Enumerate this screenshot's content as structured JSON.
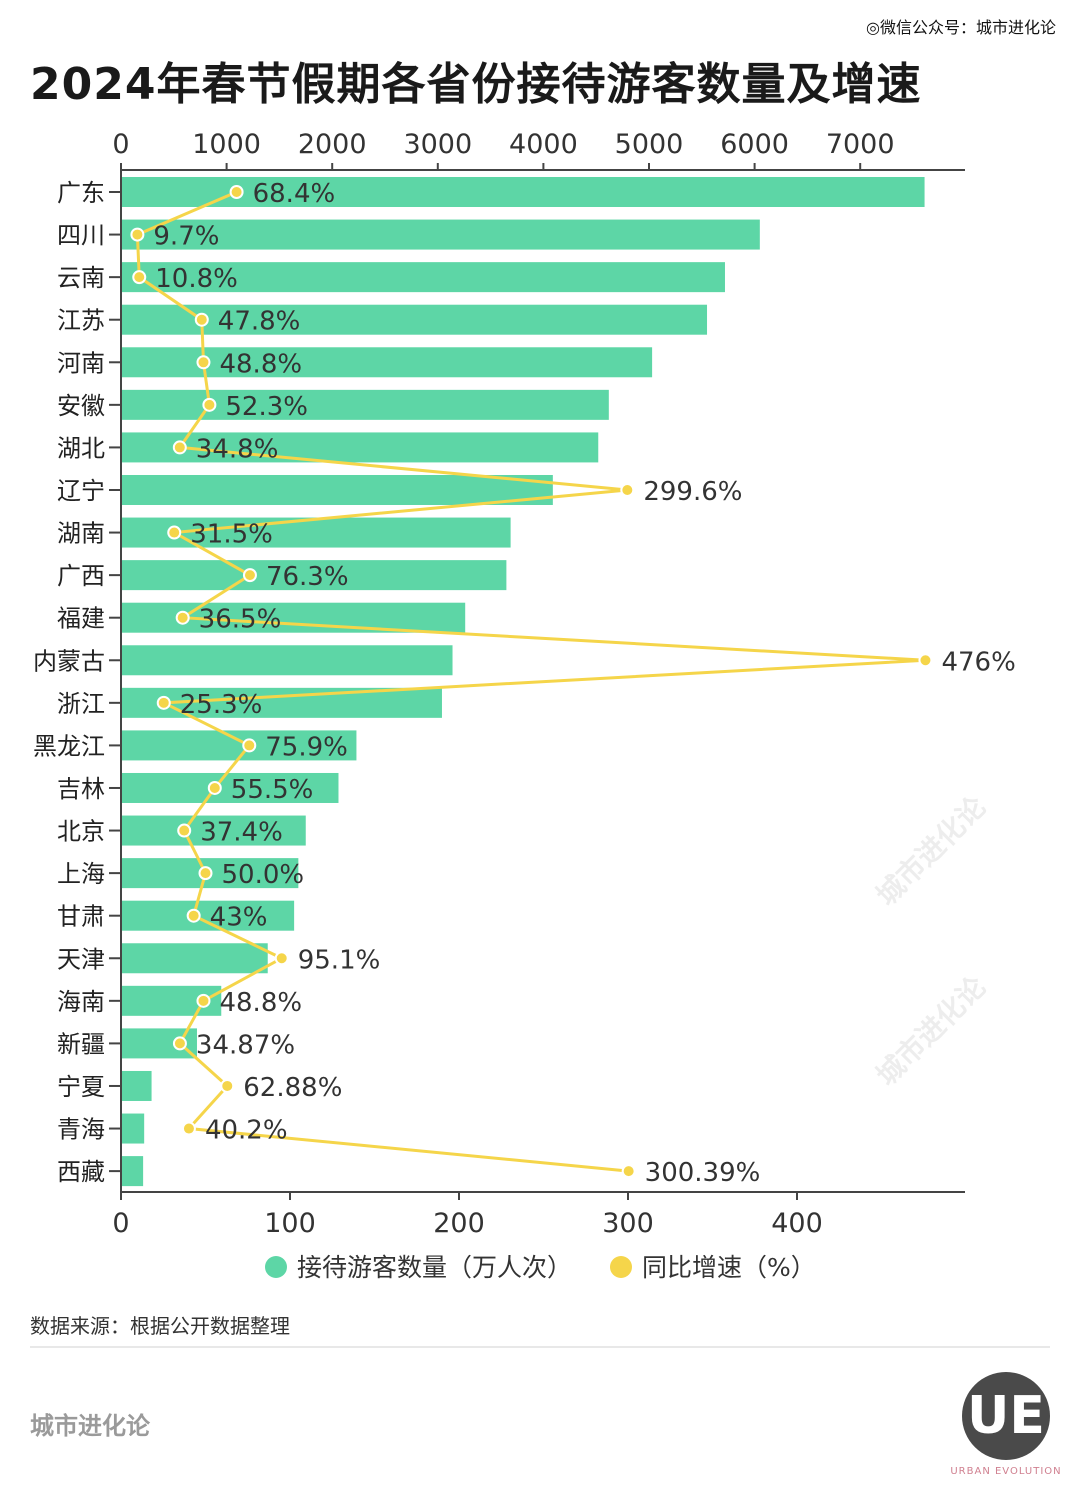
{
  "header": {
    "title": "2024年春节假期各省份接待游客数量及增速",
    "wechat": "◎微信公众号：城市进化论"
  },
  "chart_data": {
    "type": "bar",
    "title": "2024年春节假期各省份接待游客数量及增速",
    "categories": [
      "广东",
      "四川",
      "云南",
      "江苏",
      "河南",
      "安徽",
      "湖北",
      "辽宁",
      "湖南",
      "广西",
      "福建",
      "内蒙古",
      "浙江",
      "黑龙江",
      "吉林",
      "北京",
      "上海",
      "甘肃",
      "天津",
      "海南",
      "新疆",
      "宁夏",
      "青海",
      "西藏"
    ],
    "series": [
      {
        "name": "接待游客数量（万人次）",
        "type": "bar",
        "color": "#5dd6a6",
        "axis": "top",
        "values": [
          7600,
          6040,
          5710,
          5540,
          5020,
          4610,
          4510,
          4080,
          3680,
          3640,
          3250,
          3130,
          3030,
          2220,
          2050,
          1740,
          1670,
          1630,
          1380,
          940,
          710,
          280,
          210,
          200
        ]
      },
      {
        "name": "同比增速（%）",
        "type": "line",
        "color": "#f5d54a",
        "axis": "bottom",
        "values": [
          68.4,
          9.7,
          10.8,
          47.8,
          48.8,
          52.3,
          34.8,
          299.6,
          31.5,
          76.3,
          36.5,
          476,
          25.3,
          75.9,
          55.5,
          37.4,
          50.0,
          43,
          95.1,
          48.8,
          34.87,
          62.88,
          40.2,
          300.39
        ],
        "labels": [
          "68.4%",
          "9.7%",
          "10.8%",
          "47.8%",
          "48.8%",
          "52.3%",
          "34.8%",
          "299.6%",
          "31.5%",
          "76.3%",
          "36.5%",
          "476%",
          "25.3%",
          "75.9%",
          "55.5%",
          "37.4%",
          "50.0%",
          "43%",
          "95.1%",
          "48.8%",
          "34.87%",
          "62.88%",
          "40.2%",
          "300.39%"
        ]
      }
    ],
    "top_axis": {
      "ticks": [
        0,
        1000,
        2000,
        3000,
        4000,
        5000,
        6000,
        7000
      ],
      "range": [
        0,
        8000
      ]
    },
    "bottom_axis": {
      "ticks": [
        0,
        100,
        200,
        300,
        400
      ],
      "range": [
        0,
        500
      ]
    },
    "legend": {
      "position": "bottom",
      "items": [
        "接待游客数量（万人次）",
        "同比增速（%）"
      ]
    }
  },
  "footer": {
    "source": "数据来源：根据公开数据整理",
    "brand": "城市进化论",
    "logo": "UE",
    "logo_sub": "URBAN EVOLUTION"
  },
  "watermark": "城市进化论"
}
